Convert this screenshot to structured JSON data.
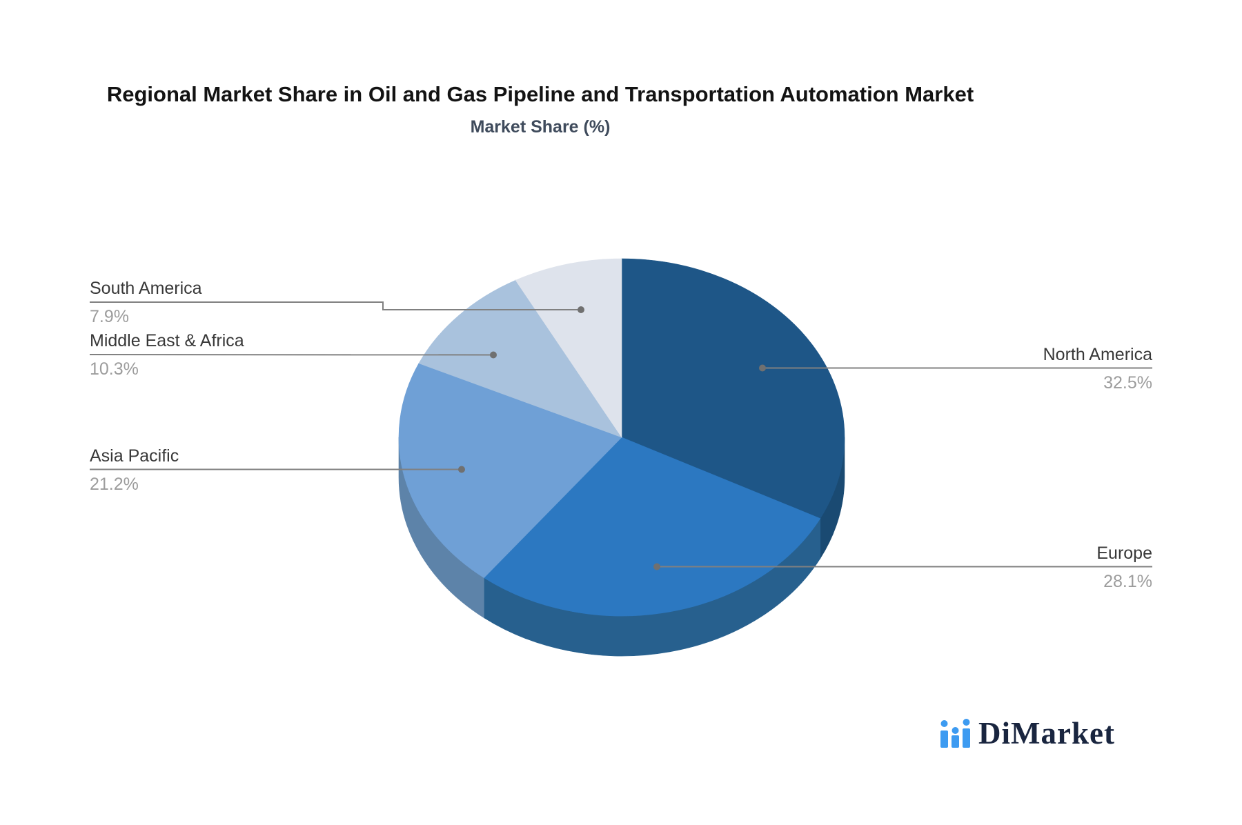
{
  "chart_data": {
    "type": "pie",
    "style": "3d",
    "title": "Regional Market Share in Oil and Gas Pipeline and Transportation Automation Market",
    "subtitle": "Market Share (%)",
    "categories": [
      "North America",
      "Europe",
      "Asia Pacific",
      "Middle East & Africa",
      "South America"
    ],
    "values": [
      32.5,
      28.1,
      21.2,
      10.3,
      7.9
    ],
    "value_labels": [
      "32.5%",
      "28.1%",
      "21.2%",
      "10.3%",
      "7.9%"
    ],
    "start_angle_deg": 0,
    "direction": "clockwise",
    "legend": "none",
    "colors": [
      "#1E5687",
      "#2C78C1",
      "#6FA0D6",
      "#A9C2DD",
      "#DEE3EC"
    ],
    "rim_colors": [
      "#1A4A72",
      "#27608E",
      "#5D83A9",
      "#92ABC6",
      "#C0C9D6"
    ],
    "wall_colors": [
      "#1B4F7C",
      "#2F6DA6",
      "#6690BE",
      "#9BB3CC",
      "#C9CFDA"
    ],
    "leader_line_color": "#808080",
    "leader_dot_color": "#707070",
    "label_text_color": "#383838",
    "percent_text_color": "#9c9c9c"
  },
  "logo": {
    "text": "DiMarket",
    "icon": "bar-chart-with-dots-icon",
    "icon_color": "#3d9bf1",
    "text_color": "#19253f"
  }
}
